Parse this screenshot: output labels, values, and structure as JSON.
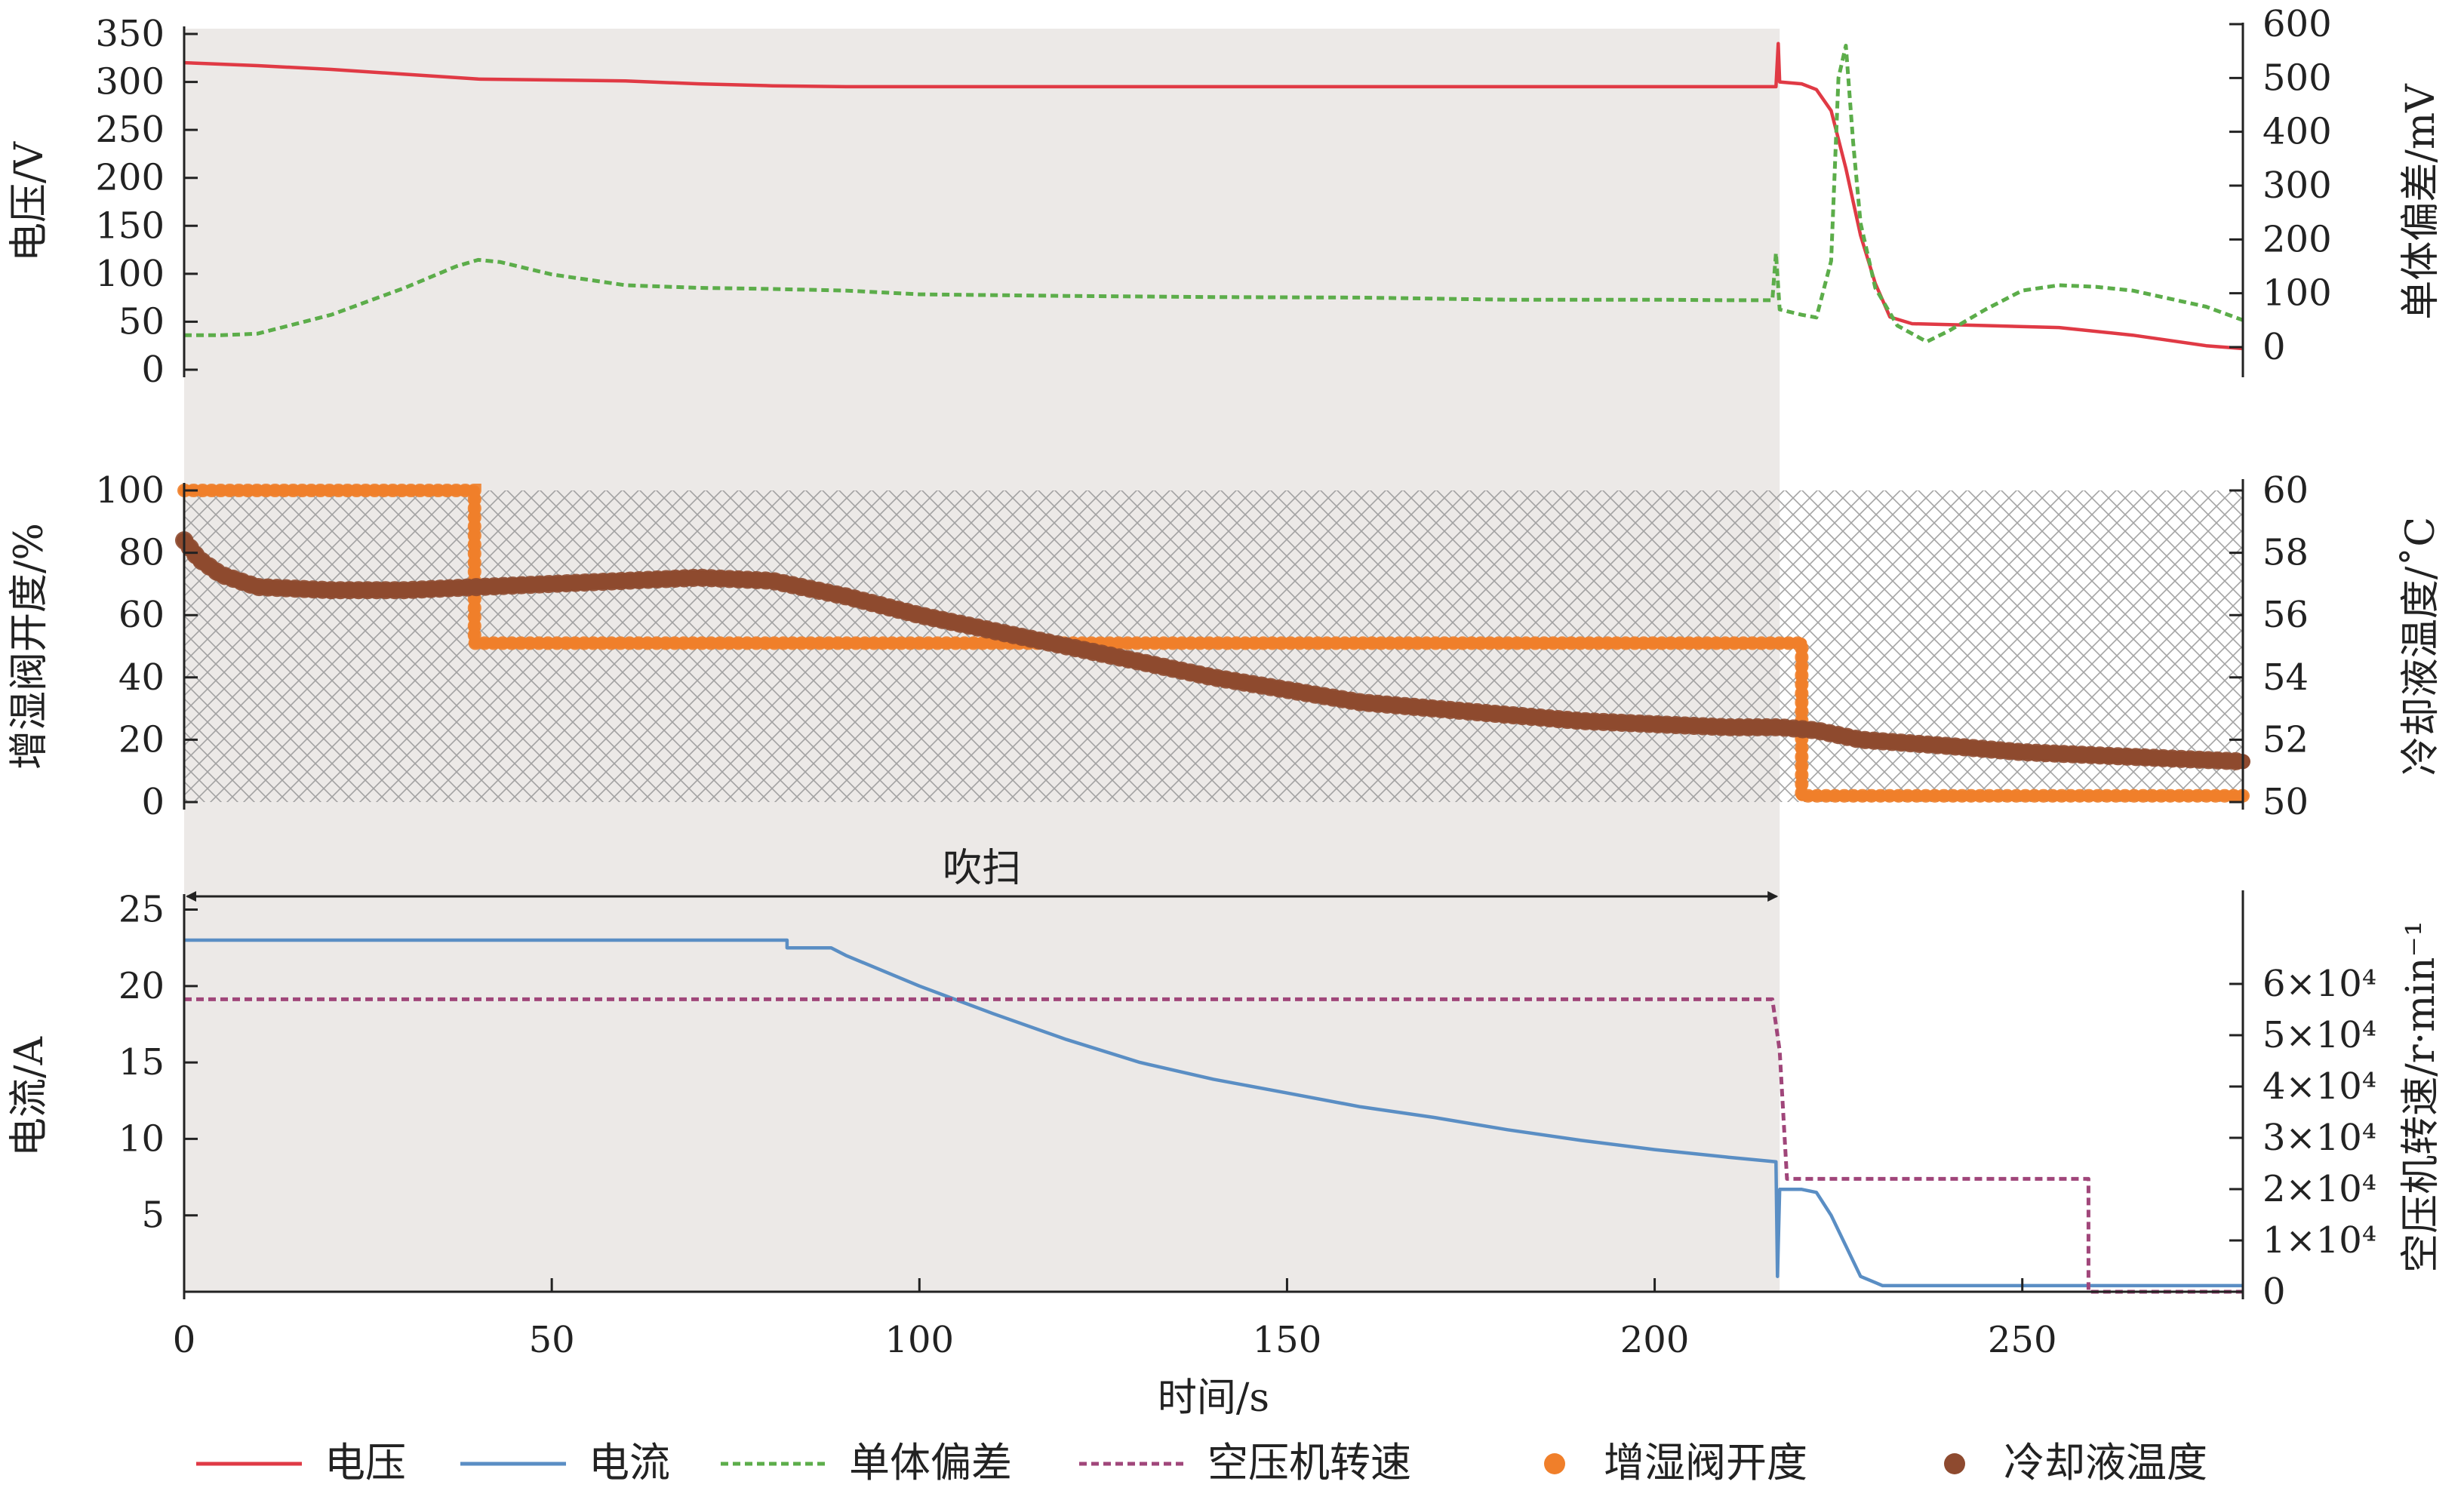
{
  "chart_data": {
    "type": "line",
    "x_label": "时间/s",
    "x_range": [
      0,
      280
    ],
    "x_ticks": [
      "0",
      "50",
      "100",
      "150",
      "200",
      "250"
    ],
    "annotation": {
      "text": "吹扫",
      "x_start": 0,
      "x_end": 217
    },
    "shaded_region": [
      0,
      217
    ],
    "hatched_region": [
      0,
      280
    ],
    "panels": [
      {
        "id": "top",
        "y_left_label": "电压/V",
        "y_left_range": [
          0,
          350
        ],
        "y_left_ticks": [
          "0",
          "50",
          "100",
          "150",
          "200",
          "250",
          "300",
          "350"
        ],
        "y_right_label": "单体偏差/mV",
        "y_right_range": [
          0,
          600
        ],
        "y_right_ticks": [
          "0",
          "100",
          "200",
          "300",
          "400",
          "500",
          "600"
        ],
        "series": [
          {
            "name": "电压",
            "axis": "left",
            "color": "#e03a45",
            "style": "solid",
            "points": [
              [
                0,
                320
              ],
              [
                10,
                317
              ],
              [
                20,
                313
              ],
              [
                30,
                308
              ],
              [
                40,
                303
              ],
              [
                50,
                302
              ],
              [
                60,
                301
              ],
              [
                70,
                298
              ],
              [
                80,
                296
              ],
              [
                90,
                295
              ],
              [
                100,
                295
              ],
              [
                150,
                295
              ],
              [
                200,
                295
              ],
              [
                216.5,
                295
              ],
              [
                216.8,
                340
              ],
              [
                217,
                300
              ],
              [
                220,
                298
              ],
              [
                222,
                292
              ],
              [
                224,
                270
              ],
              [
                226,
                210
              ],
              [
                228,
                140
              ],
              [
                230,
                90
              ],
              [
                232,
                55
              ],
              [
                235,
                48
              ],
              [
                245,
                46
              ],
              [
                255,
                44
              ],
              [
                265,
                36
              ],
              [
                275,
                25
              ],
              [
                280,
                22
              ]
            ]
          },
          {
            "name": "单体偏差",
            "axis": "right",
            "color": "#5cad4a",
            "style": "dashed",
            "points": [
              [
                0,
                22
              ],
              [
                5,
                22
              ],
              [
                10,
                25
              ],
              [
                20,
                60
              ],
              [
                30,
                110
              ],
              [
                37,
                150
              ],
              [
                40,
                162
              ],
              [
                43,
                158
              ],
              [
                50,
                135
              ],
              [
                55,
                125
              ],
              [
                60,
                115
              ],
              [
                70,
                110
              ],
              [
                80,
                108
              ],
              [
                90,
                105
              ],
              [
                100,
                98
              ],
              [
                120,
                95
              ],
              [
                140,
                93
              ],
              [
                160,
                92
              ],
              [
                180,
                88
              ],
              [
                200,
                88
              ],
              [
                210,
                87
              ],
              [
                216,
                87
              ],
              [
                216.5,
                175
              ],
              [
                217,
                70
              ],
              [
                220,
                60
              ],
              [
                222,
                55
              ],
              [
                224,
                160
              ],
              [
                225,
                500
              ],
              [
                226,
                560
              ],
              [
                227,
                380
              ],
              [
                228,
                230
              ],
              [
                230,
                110
              ],
              [
                233,
                40
              ],
              [
                237,
                10
              ],
              [
                240,
                30
              ],
              [
                245,
                70
              ],
              [
                250,
                105
              ],
              [
                255,
                115
              ],
              [
                260,
                112
              ],
              [
                265,
                105
              ],
              [
                270,
                90
              ],
              [
                275,
                75
              ],
              [
                280,
                50
              ]
            ]
          }
        ]
      },
      {
        "id": "middle",
        "y_left_label": "增湿阀开度/%",
        "y_left_range": [
          0,
          100
        ],
        "y_left_ticks": [
          "0",
          "20",
          "40",
          "60",
          "80",
          "100"
        ],
        "y_right_label": "冷却液温度/˚C",
        "y_right_range": [
          50,
          60
        ],
        "y_right_ticks": [
          "50",
          "52",
          "54",
          "56",
          "58",
          "60"
        ],
        "series": [
          {
            "name": "增湿阀开度",
            "axis": "left",
            "color": "#f07f2a",
            "style": "dots",
            "points": [
              [
                0,
                100
              ],
              [
                39.5,
                100
              ],
              [
                39.5,
                51
              ],
              [
                220,
                51
              ],
              [
                220,
                2
              ],
              [
                280,
                2
              ]
            ]
          },
          {
            "name": "冷却液温度",
            "axis": "right",
            "color": "#8e4a2f",
            "style": "dots",
            "points": [
              [
                0,
                58.4
              ],
              [
                2,
                57.8
              ],
              [
                5,
                57.3
              ],
              [
                10,
                56.9
              ],
              [
                20,
                56.8
              ],
              [
                30,
                56.8
              ],
              [
                40,
                56.9
              ],
              [
                50,
                57.0
              ],
              [
                60,
                57.1
              ],
              [
                70,
                57.2
              ],
              [
                80,
                57.1
              ],
              [
                90,
                56.6
              ],
              [
                100,
                56.0
              ],
              [
                110,
                55.5
              ],
              [
                120,
                55.0
              ],
              [
                130,
                54.5
              ],
              [
                140,
                54.0
              ],
              [
                150,
                53.6
              ],
              [
                160,
                53.2
              ],
              [
                170,
                53.0
              ],
              [
                180,
                52.8
              ],
              [
                190,
                52.6
              ],
              [
                200,
                52.5
              ],
              [
                210,
                52.4
              ],
              [
                217,
                52.4
              ],
              [
                222,
                52.3
              ],
              [
                228,
                52.0
              ],
              [
                240,
                51.8
              ],
              [
                250,
                51.6
              ],
              [
                260,
                51.5
              ],
              [
                270,
                51.4
              ],
              [
                280,
                51.3
              ]
            ]
          }
        ]
      },
      {
        "id": "bottom",
        "y_left_label": "电流/A",
        "y_left_range": [
          0,
          27
        ],
        "y_left_ticks": [
          "5",
          "10",
          "15",
          "20",
          "25"
        ],
        "y_right_label": "空压机转速/r·min⁻¹",
        "y_right_range": [
          0,
          75000
        ],
        "y_right_ticks": [
          "0",
          "1×10⁴",
          "2×10⁴",
          "3×10⁴",
          "4×10⁴",
          "5×10⁴",
          "6×10⁴"
        ],
        "series": [
          {
            "name": "电流",
            "axis": "left",
            "color": "#5a8ec4",
            "style": "solid",
            "points": [
              [
                0,
                23
              ],
              [
                82,
                23
              ],
              [
                82,
                22.5
              ],
              [
                88,
                22.5
              ],
              [
                90,
                22
              ],
              [
                100,
                20
              ],
              [
                110,
                18.2
              ],
              [
                120,
                16.5
              ],
              [
                130,
                15
              ],
              [
                140,
                13.9
              ],
              [
                150,
                13
              ],
              [
                160,
                12.1
              ],
              [
                170,
                11.4
              ],
              [
                180,
                10.6
              ],
              [
                190,
                9.9
              ],
              [
                200,
                9.3
              ],
              [
                210,
                8.8
              ],
              [
                216.5,
                8.5
              ],
              [
                216.7,
                1
              ],
              [
                217,
                6.7
              ],
              [
                220,
                6.7
              ],
              [
                222,
                6.5
              ],
              [
                224,
                5
              ],
              [
                226,
                3
              ],
              [
                228,
                1
              ],
              [
                230,
                0.6
              ],
              [
                231,
                0.4
              ],
              [
                250,
                0.4
              ],
              [
                280,
                0.4
              ]
            ]
          },
          {
            "name": "空压机转速",
            "axis": "right",
            "color": "#a0467a",
            "style": "dashed",
            "points": [
              [
                0,
                57000
              ],
              [
                216,
                57000
              ],
              [
                217,
                47000
              ],
              [
                218,
                22000
              ],
              [
                259,
                22000
              ],
              [
                259,
                0
              ],
              [
                280,
                0
              ]
            ]
          }
        ]
      }
    ],
    "legend": [
      {
        "name": "电压",
        "marker": "line-solid",
        "color": "#e03a45"
      },
      {
        "name": "电流",
        "marker": "line-solid",
        "color": "#5a8ec4"
      },
      {
        "name": "单体偏差",
        "marker": "line-dashed",
        "color": "#5cad4a"
      },
      {
        "name": "空压机转速",
        "marker": "line-dashed",
        "color": "#a0467a"
      },
      {
        "name": "增湿阀开度",
        "marker": "dot",
        "color": "#f07f2a"
      },
      {
        "name": "冷却液温度",
        "marker": "dot",
        "color": "#8e4a2f"
      }
    ]
  }
}
